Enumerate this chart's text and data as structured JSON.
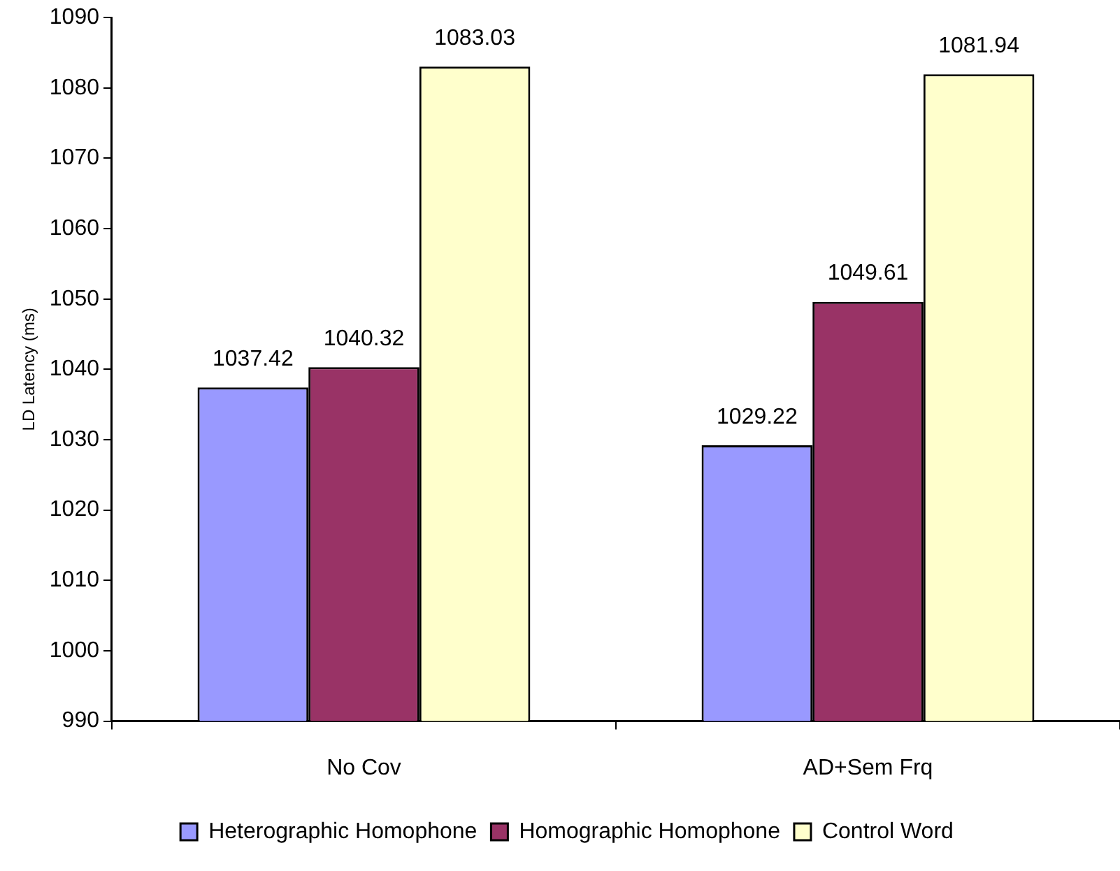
{
  "chart_data": {
    "type": "bar",
    "ylabel": "LD Latency (ms)",
    "categories": [
      "No Cov",
      "AD+Sem Frq"
    ],
    "series": [
      {
        "name": "Heterographic Homophone",
        "color": "#9999ff",
        "values": [
          1037.42,
          1029.22
        ]
      },
      {
        "name": "Homographic Homophone",
        "color": "#993366",
        "values": [
          1040.32,
          1049.61
        ]
      },
      {
        "name": "Control Word",
        "color": "#ffffcc",
        "values": [
          1083.03,
          1081.94
        ]
      }
    ],
    "ylim": [
      990,
      1090
    ],
    "yticks": [
      990,
      1000,
      1010,
      1020,
      1030,
      1040,
      1050,
      1060,
      1070,
      1080,
      1090
    ],
    "grid": false,
    "legend": "bottom",
    "data_labels": true
  }
}
